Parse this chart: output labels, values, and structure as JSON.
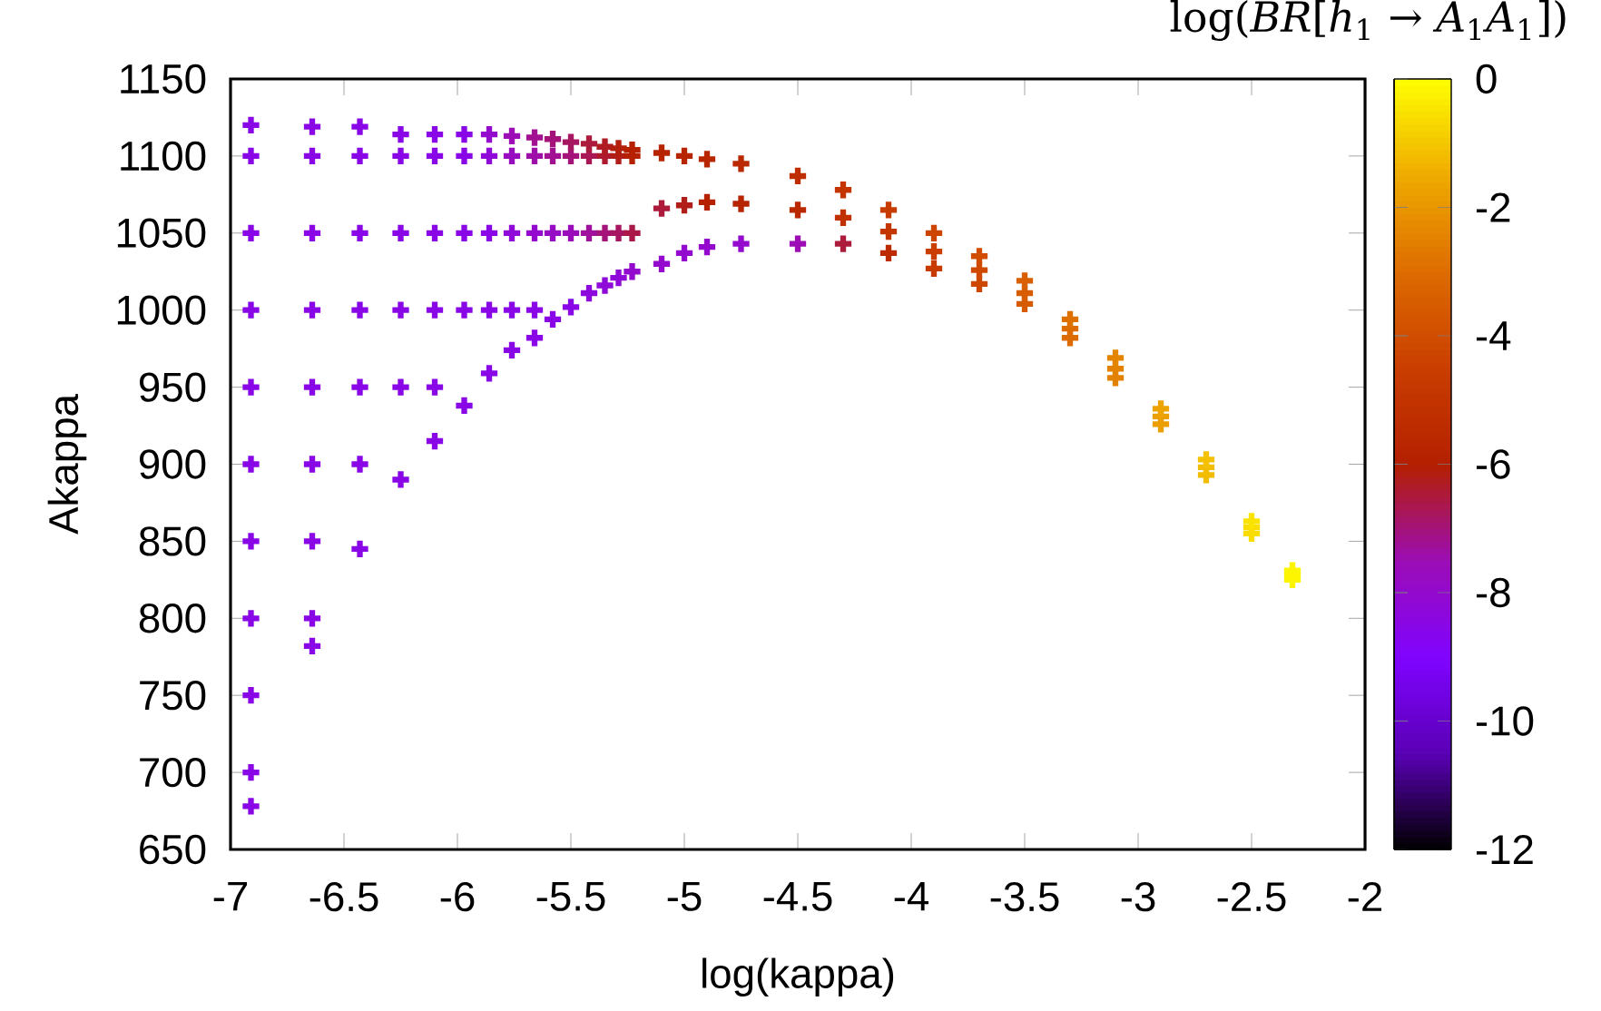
{
  "chart_data": {
    "type": "scatter",
    "xlabel": "log(kappa)",
    "ylabel": "Akappa",
    "clabel": "log(*BR*[*h*$_{1}$ → *A*$_{1}$*A*$_{1}$])",
    "xlim": [
      -7,
      -2
    ],
    "xticks": [
      -7,
      -6.5,
      -6,
      -5.5,
      -5,
      -4.5,
      -4,
      -3.5,
      -3,
      -2.5,
      -2
    ],
    "ylim": [
      650,
      1150
    ],
    "yticks": [
      650,
      700,
      750,
      800,
      850,
      900,
      950,
      1000,
      1050,
      1100,
      1150
    ],
    "clim": [
      -12,
      0
    ],
    "cticks": [
      -12,
      -10,
      -8,
      -6,
      -4,
      -2,
      0
    ],
    "marker": "cross",
    "x": [
      -6.91,
      -6.91,
      -6.91,
      -6.91,
      -6.91,
      -6.91,
      -6.91,
      -6.91,
      -6.91,
      -6.91,
      -6.91,
      -6.64,
      -6.64,
      -6.64,
      -6.64,
      -6.64,
      -6.64,
      -6.64,
      -6.64,
      -6.64,
      -6.43,
      -6.43,
      -6.43,
      -6.43,
      -6.43,
      -6.43,
      -6.43,
      -6.25,
      -6.25,
      -6.25,
      -6.25,
      -6.25,
      -6.25,
      -6.1,
      -6.1,
      -6.1,
      -6.1,
      -6.1,
      -6.1,
      -5.97,
      -5.97,
      -5.97,
      -5.97,
      -5.97,
      -5.86,
      -5.86,
      -5.86,
      -5.86,
      -5.86,
      -5.76,
      -5.76,
      -5.76,
      -5.76,
      -5.76,
      -5.66,
      -5.66,
      -5.66,
      -5.66,
      -5.66,
      -5.58,
      -5.58,
      -5.58,
      -5.58,
      -5.5,
      -5.5,
      -5.5,
      -5.5,
      -5.42,
      -5.42,
      -5.42,
      -5.42,
      -5.35,
      -5.35,
      -5.35,
      -5.35,
      -5.29,
      -5.29,
      -5.29,
      -5.29,
      -5.23,
      -5.23,
      -5.23,
      -5.23,
      -5.1,
      -5.1,
      -5.1,
      -5.0,
      -5.0,
      -5.0,
      -4.9,
      -4.9,
      -4.9,
      -4.75,
      -4.75,
      -4.75,
      -4.5,
      -4.5,
      -4.5,
      -4.3,
      -4.3,
      -4.3,
      -4.1,
      -4.1,
      -4.1,
      -3.9,
      -3.9,
      -3.9,
      -3.7,
      -3.7,
      -3.7,
      -3.5,
      -3.5,
      -3.5,
      -3.3,
      -3.3,
      -3.3,
      -3.1,
      -3.1,
      -3.1,
      -2.9,
      -2.9,
      -2.9,
      -2.7,
      -2.7,
      -2.7,
      -2.5,
      -2.5,
      -2.5,
      -2.32,
      -2.32,
      -2.32
    ],
    "values": [
      678,
      700,
      750,
      800,
      850,
      900,
      950,
      1000,
      1050,
      1100,
      1120,
      782,
      800,
      850,
      900,
      950,
      1000,
      1050,
      1100,
      1119,
      845,
      900,
      950,
      1000,
      1050,
      1100,
      1119,
      890,
      950,
      1000,
      1050,
      1100,
      1114,
      915,
      950,
      1000,
      1050,
      1100,
      1114,
      938,
      1000,
      1050,
      1100,
      1114,
      959,
      1000,
      1050,
      1100,
      1114,
      974,
      1000,
      1050,
      1100,
      1113,
      982,
      1000,
      1050,
      1100,
      1112,
      994,
      1050,
      1100,
      1111,
      1002,
      1050,
      1100,
      1109,
      1011,
      1050,
      1100,
      1108,
      1016,
      1050,
      1100,
      1106,
      1021,
      1050,
      1100,
      1105,
      1025,
      1050,
      1100,
      1104,
      1030,
      1066,
      1102,
      1037,
      1068,
      1100,
      1041,
      1070,
      1098,
      1043,
      1069,
      1095,
      1043,
      1065,
      1087,
      1043,
      1060,
      1078,
      1037,
      1051,
      1065,
      1027,
      1038,
      1050,
      1017,
      1026,
      1035,
      1004,
      1011,
      1019,
      982,
      988,
      994,
      956,
      962,
      969,
      926,
      931,
      936,
      893,
      898,
      903,
      855,
      859,
      863,
      825,
      828,
      831
    ],
    "cvalues": [
      -8.5,
      -8.5,
      -8.5,
      -8.5,
      -8.5,
      -8.5,
      -8.5,
      -8.5,
      -8.5,
      -8.5,
      -8.5,
      -8.5,
      -8.5,
      -8.5,
      -8.5,
      -8.5,
      -8.5,
      -8.5,
      -8.5,
      -8.5,
      -8.5,
      -8.5,
      -8.5,
      -8.5,
      -8.5,
      -8.5,
      -8.5,
      -8.5,
      -8.5,
      -8.5,
      -8.5,
      -8.5,
      -8.5,
      -8.5,
      -8.5,
      -8.5,
      -8.5,
      -8.5,
      -8.5,
      -8.5,
      -8.5,
      -8.5,
      -8.5,
      -8.5,
      -8.5,
      -8.5,
      -8.5,
      -8.2,
      -8,
      -8.5,
      -8.5,
      -8.2,
      -7.7,
      -7.5,
      -8.5,
      -8.5,
      -8,
      -7.4,
      -7.2,
      -8.5,
      -7.8,
      -7.2,
      -7,
      -8.5,
      -7.6,
      -7,
      -6.8,
      -8.3,
      -7.3,
      -6.7,
      -6.5,
      -8.2,
      -7,
      -6.4,
      -6.3,
      -8.2,
      -6.8,
      -6.2,
      -6.1,
      -8,
      -6.6,
      -6,
      -6,
      -8,
      -6.5,
      -5.8,
      -8,
      -6.2,
      -5.8,
      -8,
      -6,
      -5.7,
      -8,
      -5.8,
      -5.6,
      -7.5,
      -5.6,
      -5.3,
      -6.5,
      -5.2,
      -5,
      -5.5,
      -4.9,
      -4.7,
      -4.7,
      -4.5,
      -4.3,
      -4.2,
      -4.1,
      -4,
      -3.6,
      -3.5,
      -3.4,
      -3,
      -3,
      -2.9,
      -2.5,
      -2.5,
      -2.4,
      -1.8,
      -1.8,
      -1.7,
      -1.2,
      -1.2,
      -1.1,
      -0.6,
      -0.6,
      -0.5,
      -0.2,
      -0.2,
      -0.2
    ]
  }
}
